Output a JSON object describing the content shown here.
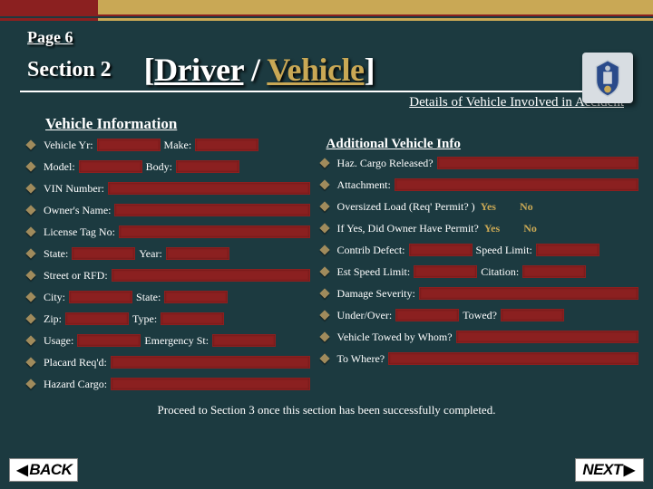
{
  "page_label": "Page 6",
  "section_label": "Section 2",
  "title": {
    "open": "[",
    "driver": "Driver",
    "slash": " / ",
    "vehicle": "Vehicle",
    "close": "]"
  },
  "subtitle": "Details of Vehicle Involved in Accident",
  "group_title": "Vehicle Information",
  "additional_title": "Additional Vehicle Info",
  "left": [
    {
      "labels": [
        "Vehicle Yr:",
        "Make:"
      ],
      "fields": 2,
      "fsize": "s"
    },
    {
      "labels": [
        "Model:",
        "Body:"
      ],
      "fields": 2,
      "fsize": "s"
    },
    {
      "labels": [
        "VIN Number:"
      ],
      "fields": 1
    },
    {
      "labels": [
        "Owner's Name:"
      ],
      "fields": 1
    },
    {
      "labels": [
        "License Tag No:"
      ],
      "fields": 1
    },
    {
      "labels": [
        "State:",
        "Year:"
      ],
      "fields": 2,
      "fsize": "s"
    },
    {
      "labels": [
        "Street or RFD:"
      ],
      "fields": 1
    },
    {
      "labels": [
        "City:",
        "State:"
      ],
      "fields": 2,
      "fsize": "s"
    },
    {
      "labels": [
        "Zip:",
        "Type:"
      ],
      "fields": 2,
      "fsize": "s"
    },
    {
      "labels": [
        "Usage:",
        "Emergency St:"
      ],
      "fields": 2,
      "fsize": "s"
    },
    {
      "labels": [
        "Placard Req'd:"
      ],
      "fields": 1
    },
    {
      "labels": [
        "Hazard Cargo:"
      ],
      "fields": 1
    }
  ],
  "right": [
    {
      "labels": [
        "Haz. Cargo Released?"
      ],
      "fields": 1
    },
    {
      "labels": [
        "Attachment:"
      ],
      "fields": 1
    },
    {
      "labels": [
        "Oversized Load (Req' Permit? )"
      ],
      "yesno": true
    },
    {
      "labels": [
        "If Yes, Did Owner Have Permit?"
      ],
      "yesno_tight": true
    },
    {
      "labels": [
        "Contrib Defect:",
        "Speed Limit:"
      ],
      "fields": 2,
      "fsize": "s"
    },
    {
      "labels": [
        "Est Speed Limit:",
        "Citation:"
      ],
      "fields": 2,
      "fsize": "s"
    },
    {
      "labels": [
        "Damage Severity:"
      ],
      "fields": 1
    },
    {
      "labels": [
        "Under/Over:",
        "Towed?"
      ],
      "fields": 2,
      "fsize": "s"
    },
    {
      "labels": [
        "Vehicle Towed by Whom?"
      ],
      "fields": 1
    },
    {
      "labels": [
        "To Where?"
      ],
      "fields": 1
    }
  ],
  "yes": "Yes",
  "no": "No",
  "footer": "Proceed to Section 3 once this section has been successfully completed.",
  "back": "BACK",
  "next": "NEXT",
  "colors": {
    "bg": "#1c3a40",
    "accent_gold": "#c9a855",
    "accent_red": "#8b2020",
    "diamond": "#a08b5c"
  }
}
